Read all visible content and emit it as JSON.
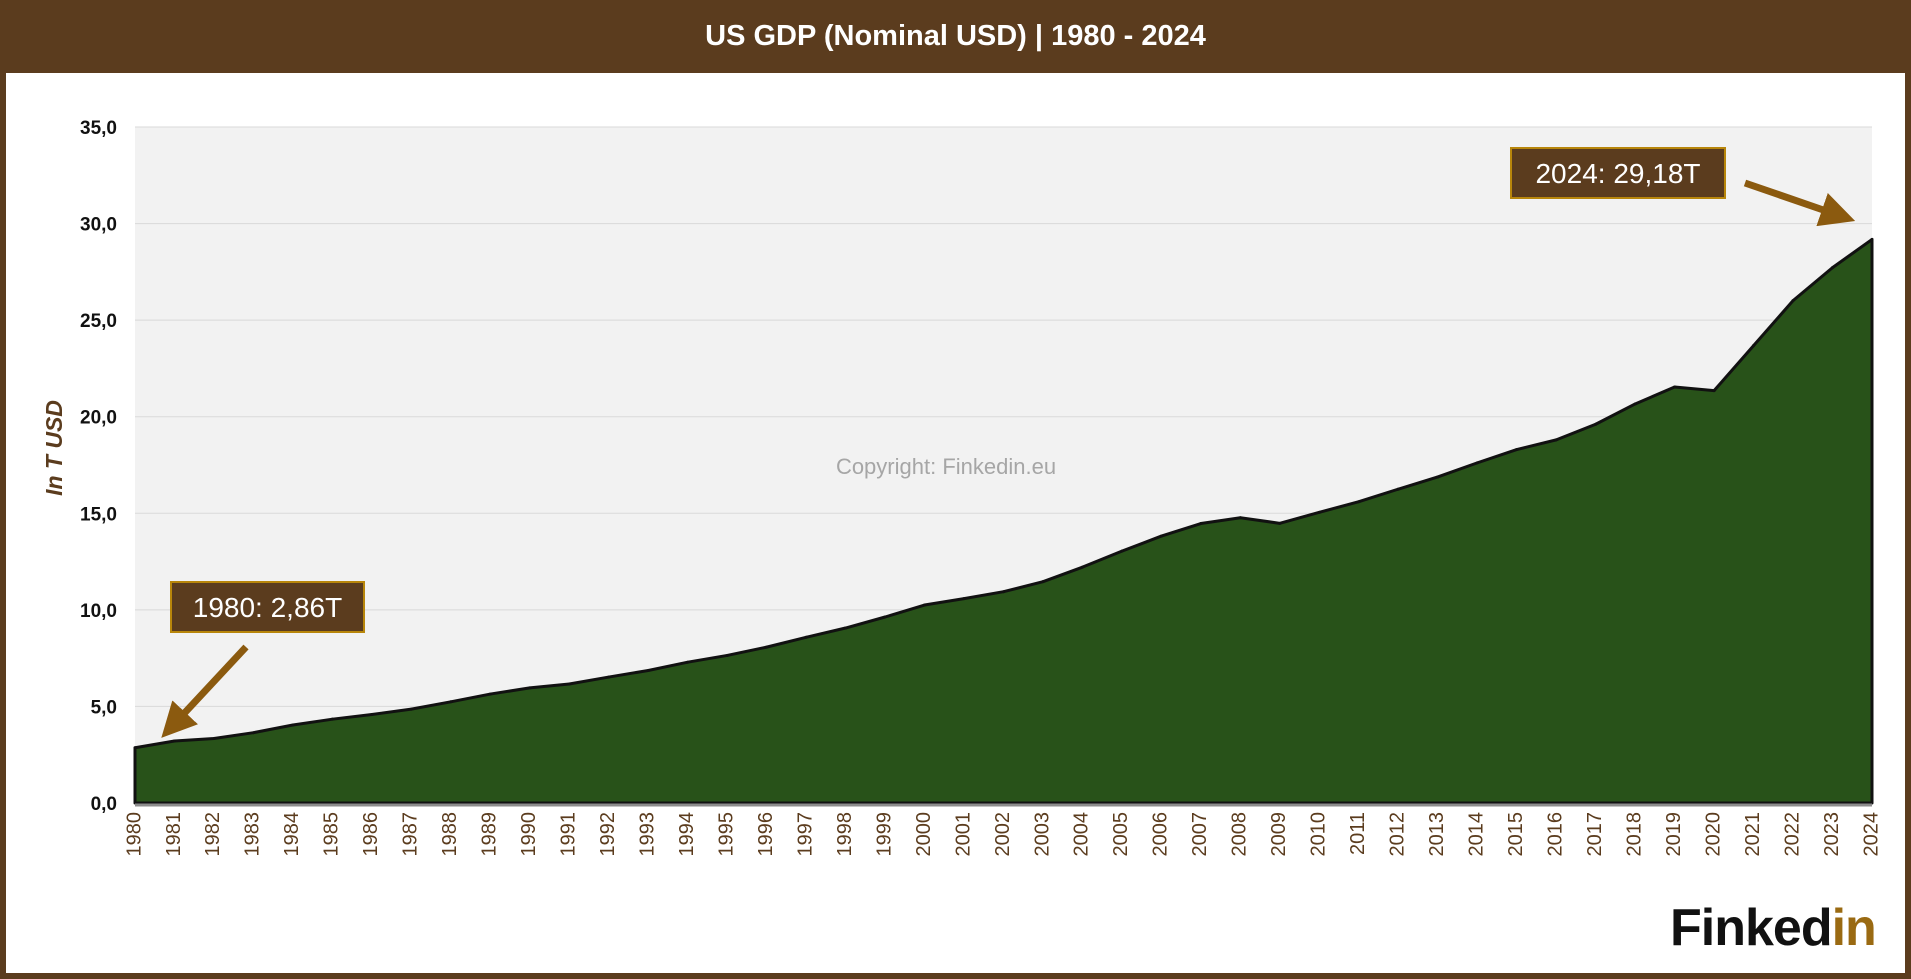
{
  "chart_data": {
    "type": "area",
    "title": "US GDP (Nominal USD) | 1980 - 2024",
    "ylabel": "In T USD",
    "xlabel": "",
    "ylim": [
      0,
      35
    ],
    "yticks": [
      "0,0",
      "5,0",
      "10,0",
      "15,0",
      "20,0",
      "25,0",
      "30,0",
      "35,0"
    ],
    "grid": true,
    "x": [
      "1980",
      "1981",
      "1982",
      "1983",
      "1984",
      "1985",
      "1986",
      "1987",
      "1988",
      "1989",
      "1990",
      "1991",
      "1992",
      "1993",
      "1994",
      "1995",
      "1996",
      "1997",
      "1998",
      "1999",
      "2000",
      "2001",
      "2002",
      "2003",
      "2004",
      "2005",
      "2006",
      "2007",
      "2008",
      "2009",
      "2010",
      "2011",
      "2012",
      "2013",
      "2014",
      "2015",
      "2016",
      "2017",
      "2018",
      "2019",
      "2020",
      "2021",
      "2022",
      "2023",
      "2024"
    ],
    "series": [
      {
        "values": [
          2.86,
          3.21,
          3.34,
          3.64,
          4.04,
          4.34,
          4.58,
          4.86,
          5.24,
          5.64,
          5.96,
          6.16,
          6.52,
          6.86,
          7.29,
          7.64,
          8.07,
          8.58,
          9.06,
          9.63,
          10.25,
          10.58,
          10.94,
          11.46,
          12.21,
          13.04,
          13.82,
          14.47,
          14.77,
          14.48,
          15.05,
          15.6,
          16.25,
          16.88,
          17.61,
          18.3,
          18.8,
          19.61,
          20.66,
          21.54,
          21.35,
          23.68,
          26.01,
          27.72,
          29.18
        ]
      }
    ],
    "annotations": [
      {
        "label": "1980: 2,86T",
        "x": "1980",
        "y": 2.86
      },
      {
        "label": "2024: 29,18T",
        "x": "2024",
        "y": 29.18
      }
    ],
    "watermark": "Copyright: Finkedin.eu",
    "colors": {
      "frame": "#5b3c1e",
      "area_fill": "#285219",
      "area_line": "#111111",
      "plot_bg": "#f2f2f2",
      "gridline": "#d9d9d9",
      "annotation_box": "#5b3c1e",
      "annotation_border": "#b8860b",
      "arrow": "#8b5a0f",
      "tick_text": "#5b3c1e",
      "ylabel": "#5b3c1e",
      "watermark": "#a6a6a6"
    }
  },
  "logo": {
    "part1": "Finked",
    "part2": "in"
  }
}
